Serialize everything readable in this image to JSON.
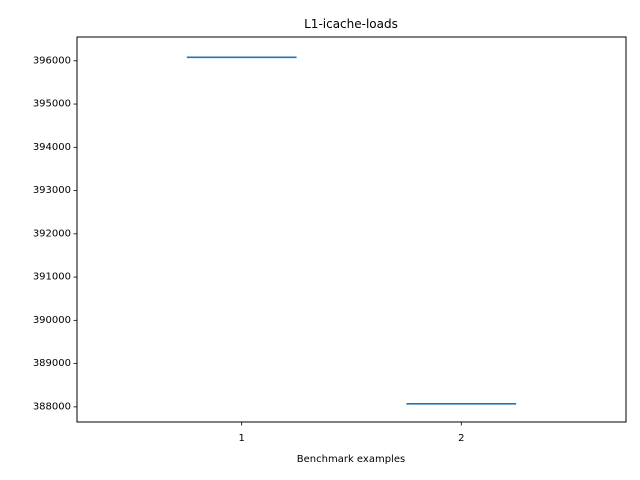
{
  "chart_data": {
    "type": "box",
    "title": "L1-icache-loads",
    "xlabel": "Benchmark examples",
    "ylabel": "",
    "categories": [
      "1",
      "2"
    ],
    "series": [
      {
        "values": [
          396080,
          388070
        ],
        "color": "#1f77b4"
      }
    ],
    "ylim": [
      387650,
      396550
    ],
    "yticks": [
      388000,
      389000,
      390000,
      391000,
      392000,
      393000,
      394000,
      395000,
      396000
    ],
    "ytick_labels": [
      "388000",
      "389000",
      "390000",
      "391000",
      "392000",
      "393000",
      "394000",
      "395000",
      "396000"
    ],
    "xlim": [
      0.25,
      2.75
    ],
    "grid": false,
    "legend": "none"
  }
}
